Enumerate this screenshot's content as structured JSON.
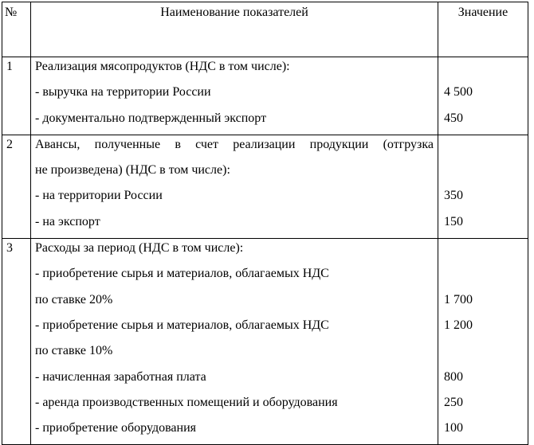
{
  "header": {
    "num": "№",
    "name": "Наименование показателей",
    "value": "Значение"
  },
  "rows": [
    {
      "num": "1",
      "lines": [
        {
          "text": "Реализация мясопродуктов (НДС в том числе):",
          "value": ""
        },
        {
          "text": "- выручка на территории России",
          "value": "4 500"
        },
        {
          "text": "- документально подтвержденный экспорт",
          "value": "450"
        }
      ]
    },
    {
      "num": "2",
      "lines": [
        {
          "text": "Авансы, полученные в счет реализации продукции (отгрузка",
          "value": "",
          "justify": true
        },
        {
          "text": "не произведена) (НДС в том числе):",
          "value": ""
        },
        {
          "text": "- на территории России",
          "value": "350"
        },
        {
          "text": "- на экспорт",
          "value": "150"
        }
      ]
    },
    {
      "num": "3",
      "lines": [
        {
          "text": "Расходы за период (НДС в том числе):",
          "value": ""
        },
        {
          "text": "- приобретение сырья и материалов, облагаемых НДС",
          "value": ""
        },
        {
          "text": "по ставке 20%",
          "value": "1 700"
        },
        {
          "text": "- приобретение сырья и материалов, облагаемых НДС",
          "value": "1 200"
        },
        {
          "text": "по ставке 10%",
          "value": ""
        },
        {
          "text": "- начисленная заработная плата",
          "value": "800"
        },
        {
          "text": "- аренда производственных помещений и оборудования",
          "value": "250"
        },
        {
          "text": "- приобретение оборудования",
          "value": "100"
        }
      ]
    }
  ]
}
